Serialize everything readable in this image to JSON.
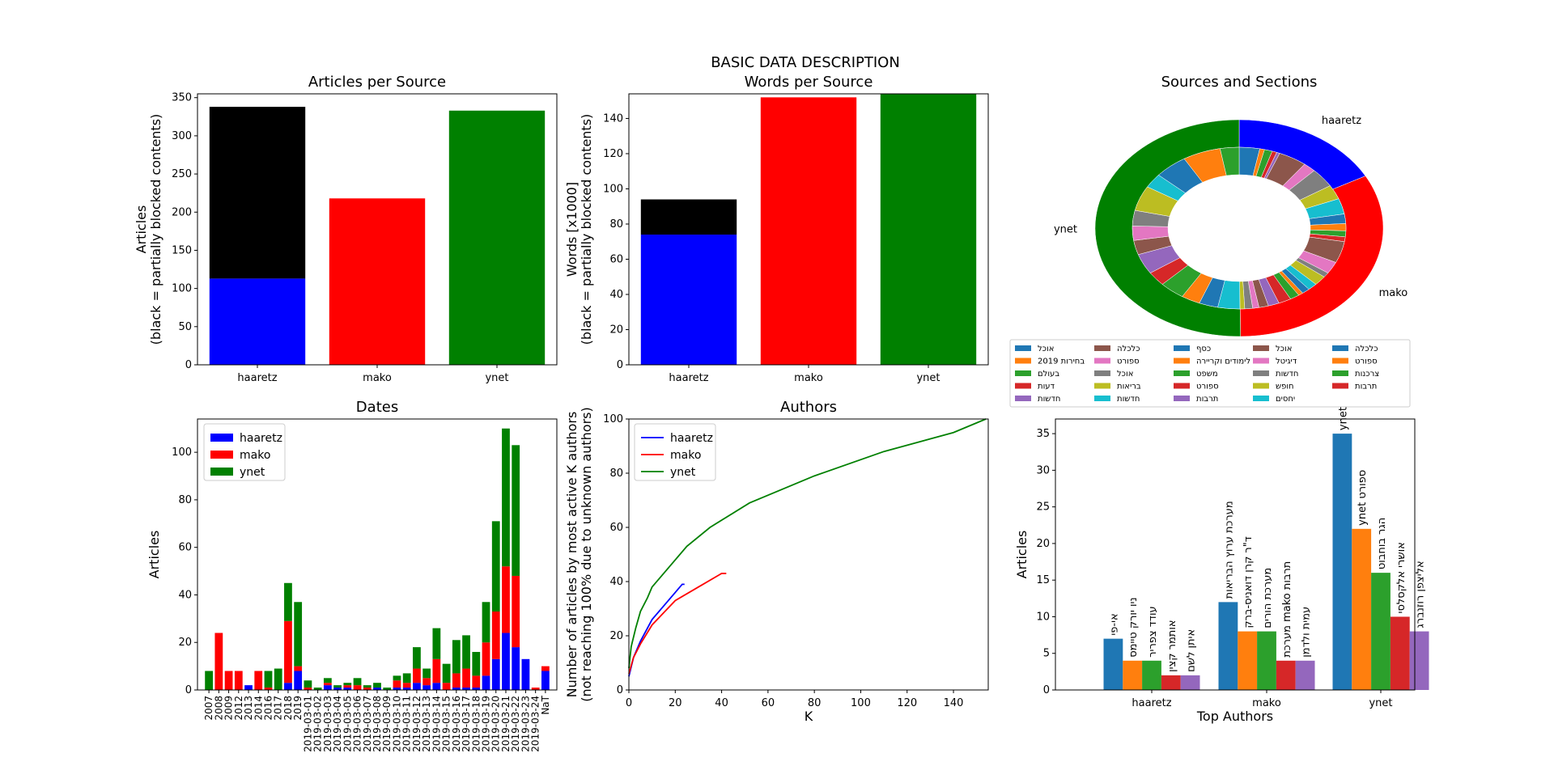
{
  "figure_title": "BASIC DATA DESCRIPTION",
  "colors": {
    "haaretz": "#0000ff",
    "mako": "#ff0000",
    "ynet": "#008000",
    "blocked": "#000000",
    "tab10": [
      "#1f77b4",
      "#ff7f0e",
      "#2ca02c",
      "#d62728",
      "#9467bd",
      "#8c564b",
      "#e377c2",
      "#7f7f7f",
      "#bcbd22",
      "#17becf"
    ]
  },
  "chart_data": [
    {
      "id": "articles",
      "type": "bar",
      "title": "Articles per Source",
      "ylabel_line1": "Articles",
      "ylabel_line2": "(black = partially blocked contents)",
      "categories": [
        "haaretz",
        "mako",
        "ynet"
      ],
      "series": [
        {
          "name": "unblocked",
          "values": [
            113,
            218,
            333
          ]
        },
        {
          "name": "blocked",
          "values": [
            225,
            0,
            0
          ]
        }
      ],
      "ylim": [
        0,
        355
      ],
      "yticks": [
        0,
        50,
        100,
        150,
        200,
        250,
        300,
        350
      ]
    },
    {
      "id": "words",
      "type": "bar",
      "title": "Words per Source",
      "ylabel_line1": "Words [x1000]",
      "ylabel_line2": "(black = partially blocked contents)",
      "categories": [
        "haaretz",
        "mako",
        "ynet"
      ],
      "series": [
        {
          "name": "unblocked",
          "values": [
            74,
            152,
            154
          ]
        },
        {
          "name": "blocked",
          "values": [
            20,
            0,
            0
          ]
        }
      ],
      "ylim": [
        0,
        154
      ],
      "yticks": [
        0,
        20,
        40,
        60,
        80,
        100,
        120,
        140
      ]
    },
    {
      "id": "sources",
      "type": "pie",
      "title": "Sources and Sections",
      "outer": [
        {
          "label": "haaretz",
          "value": 113
        },
        {
          "label": "mako",
          "value": 218
        },
        {
          "label": "ynet",
          "value": 333
        }
      ],
      "inner_values": [
        13,
        3,
        5,
        3,
        2,
        18,
        8,
        16,
        12,
        13,
        8,
        6,
        5,
        4,
        18,
        10,
        4,
        8,
        6,
        5,
        3,
        6,
        8,
        7,
        6,
        4,
        5,
        3,
        14,
        12,
        12,
        16,
        12,
        17,
        12,
        12,
        13,
        21,
        12,
        21,
        24,
        12
      ],
      "inner_colors": [
        0,
        1,
        2,
        3,
        4,
        5,
        6,
        7,
        8,
        9,
        0,
        1,
        2,
        3,
        5,
        6,
        7,
        8,
        9,
        0,
        1,
        2,
        3,
        4,
        5,
        6,
        7,
        8,
        9,
        0,
        1,
        2,
        3,
        4,
        5,
        6,
        7,
        8,
        9,
        0,
        1,
        2
      ],
      "legend": [
        [
          "אוכל",
          "בחירות 2019",
          "בעולם",
          "דעות",
          "חדשות"
        ],
        [
          "כלכלה",
          "ספורט",
          "אוכל",
          "בריאות",
          "חדשות"
        ],
        [
          "כסף",
          "לימודים וקריירה",
          "משפט",
          "ספורט",
          "תרבות"
        ],
        [
          "אוכל",
          "דיגיטל",
          "חדשות",
          "חופש",
          "יחסים"
        ],
        [
          "כלכלה",
          "ספורט",
          "צרכנות",
          "תרבות"
        ]
      ],
      "legend_colors": [
        [
          0,
          1,
          2,
          3,
          4
        ],
        [
          5,
          6,
          7,
          8,
          9
        ],
        [
          0,
          1,
          2,
          3,
          4
        ],
        [
          5,
          6,
          7,
          8,
          9
        ],
        [
          0,
          1,
          2,
          3
        ]
      ]
    },
    {
      "id": "dates",
      "type": "bar",
      "title": "Dates",
      "ylabel": "Articles",
      "categories": [
        "2007",
        "2008",
        "2009",
        "2012",
        "2013",
        "2014",
        "2016",
        "2017",
        "2018",
        "2019",
        "2019-03-01",
        "2019-03-02",
        "2019-03-03",
        "2019-03-04",
        "2019-03-05",
        "2019-03-06",
        "2019-03-07",
        "2019-03-08",
        "2019-03-09",
        "2019-03-10",
        "2019-03-11",
        "2019-03-12",
        "2019-03-13",
        "2019-03-14",
        "2019-03-15",
        "2019-03-16",
        "2019-03-17",
        "2019-03-18",
        "2019-03-19",
        "2019-03-20",
        "2019-03-21",
        "2019-03-22",
        "2019-03-23",
        "2019-03-24",
        "NaT"
      ],
      "series": [
        {
          "name": "haaretz",
          "values": [
            0,
            0,
            0,
            0,
            2,
            0,
            0,
            0,
            3,
            8,
            0,
            0,
            2,
            1,
            1,
            0,
            0,
            1,
            0,
            1,
            1,
            3,
            2,
            3,
            0,
            1,
            1,
            1,
            6,
            13,
            24,
            18,
            13,
            0,
            8
          ]
        },
        {
          "name": "mako",
          "values": [
            0,
            24,
            8,
            8,
            0,
            8,
            1,
            0,
            26,
            2,
            1,
            0,
            1,
            0,
            1,
            2,
            1,
            0,
            0,
            3,
            2,
            6,
            3,
            10,
            3,
            6,
            8,
            5,
            14,
            20,
            28,
            30,
            0,
            1,
            2
          ]
        },
        {
          "name": "ynet",
          "values": [
            8,
            0,
            0,
            0,
            0,
            0,
            7,
            9,
            16,
            27,
            3,
            1,
            2,
            1,
            1,
            3,
            1,
            2,
            1,
            2,
            4,
            9,
            4,
            13,
            8,
            14,
            14,
            10,
            17,
            38,
            58,
            55,
            0,
            0,
            0
          ]
        }
      ],
      "legend": [
        "haaretz",
        "mako",
        "ynet"
      ],
      "ylim": [
        0,
        114
      ],
      "yticks": [
        0,
        20,
        40,
        60,
        80,
        100
      ]
    },
    {
      "id": "authors",
      "type": "line",
      "title": "Authors",
      "xlabel": "K",
      "ylabel_line1": "Number of articles by most active K authors",
      "ylabel_line2": "(not reaching 100% due to unknown authors)",
      "series": [
        {
          "name": "haaretz",
          "x": [
            0,
            2,
            5,
            10,
            15,
            20,
            23,
            24
          ],
          "y": [
            5,
            12,
            18,
            26,
            31,
            36,
            39,
            39
          ]
        },
        {
          "name": "mako",
          "x": [
            0,
            2,
            5,
            10,
            20,
            30,
            40,
            42
          ],
          "y": [
            6,
            12,
            17,
            24,
            33,
            38,
            43,
            43
          ]
        },
        {
          "name": "ynet",
          "x": [
            0,
            1,
            3,
            5,
            8,
            10,
            15,
            25,
            35,
            52,
            80,
            110,
            140,
            154
          ],
          "y": [
            8,
            16,
            23,
            29,
            34,
            38,
            43,
            53,
            60,
            69,
            79,
            88,
            95,
            100
          ]
        }
      ],
      "legend": [
        "haaretz",
        "mako",
        "ynet"
      ],
      "xlim": [
        0,
        155
      ],
      "ylim": [
        0,
        100
      ],
      "xticks": [
        0,
        20,
        40,
        60,
        80,
        100,
        120,
        140
      ],
      "yticks": [
        0,
        20,
        40,
        60,
        80,
        100
      ]
    },
    {
      "id": "top_authors",
      "type": "bar",
      "title": "",
      "xlabel": "Top Authors",
      "ylabel": "Articles",
      "categories": [
        "haaretz",
        "mako",
        "ynet"
      ],
      "groups": [
        {
          "labels": [
            "אי-פי",
            "ניו יורק טיימס",
            "עודד צפריר",
            "אותמר קצין",
            "איתן לשם"
          ],
          "values": [
            7,
            4,
            4,
            2,
            2
          ]
        },
        {
          "labels": [
            "מערכת ערוץ הבריאות",
            "ד\"ר קרן דואניס-ברק",
            "מערכת הורים",
            "מערכת mako תרבות",
            "עמית ולדמן"
          ],
          "values": [
            12,
            8,
            8,
            4,
            4
          ]
        },
        {
          "labels": [
            "ynet",
            "ynet ספורט",
            "הגר בוחבוט",
            "אושרי אלקסלסי",
            "אליצפן רוזנברג"
          ],
          "values": [
            35,
            22,
            16,
            10,
            8
          ]
        }
      ],
      "ylim": [
        0,
        37
      ],
      "yticks": [
        0,
        5,
        10,
        15,
        20,
        25,
        30,
        35
      ]
    }
  ]
}
